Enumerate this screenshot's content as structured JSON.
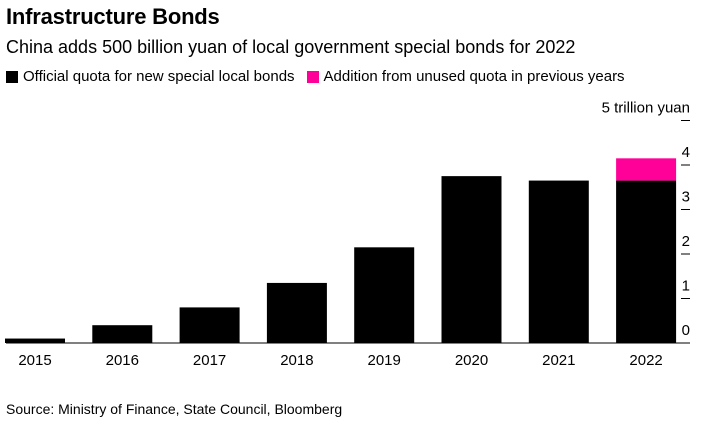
{
  "chart_data": {
    "type": "bar",
    "title": "Infrastructure Bonds",
    "subtitle": "China adds 500 billion yuan of local government special bonds for 2022",
    "categories": [
      "2015",
      "2016",
      "2017",
      "2018",
      "2019",
      "2020",
      "2021",
      "2022"
    ],
    "series": [
      {
        "name": "Official quota for new special local bonds",
        "color": "#000000",
        "values": [
          0.1,
          0.4,
          0.8,
          1.35,
          2.15,
          3.75,
          3.65,
          3.65
        ]
      },
      {
        "name": "Addition from unused quota in previous years",
        "color": "#ff0099",
        "values": [
          0,
          0,
          0,
          0,
          0,
          0,
          0,
          0.5
        ]
      }
    ],
    "stacked": true,
    "ylim": [
      0,
      5
    ],
    "yticks": [
      {
        "value": 0,
        "label": "0"
      },
      {
        "value": 1,
        "label": "1"
      },
      {
        "value": 2,
        "label": "2"
      },
      {
        "value": 3,
        "label": "3"
      },
      {
        "value": 4,
        "label": "4"
      },
      {
        "value": 5,
        "label": "5 trillion yuan"
      }
    ],
    "ylabel": "",
    "xlabel": "",
    "legend_position": "top-left",
    "source": "Source: Ministry of Finance, State Council, Bloomberg"
  }
}
